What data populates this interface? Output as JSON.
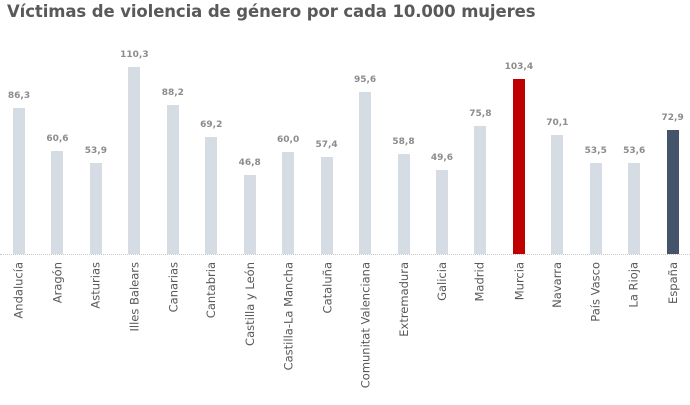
{
  "title": "Víctimas de violencia de género por cada 10.000 mujeres",
  "colors": {
    "default_bar": "#d5dce4",
    "highlight_bar": "#c00000",
    "national_bar": "#44546a",
    "value_label": "#8c8c8c",
    "category_label": "#595959",
    "title": "#595959"
  },
  "chart_data": {
    "type": "bar",
    "title": "Víctimas de violencia de género por cada 10.000 mujeres",
    "xlabel": "",
    "ylabel": "",
    "ylim": [
      0,
      110.3
    ],
    "grid": false,
    "legend": null,
    "categories": [
      "Andalucía",
      "Aragón",
      "Asturias",
      "Illes Balears",
      "Canarias",
      "Cantabria",
      "Castilla y León",
      "Castilla-La Mancha",
      "Cataluña",
      "Comunitat Valenciana",
      "Extremadura",
      "Galicia",
      "Madrid",
      "Murcia",
      "Navarra",
      "País Vasco",
      "La Rioja",
      "España"
    ],
    "values": [
      86.3,
      60.6,
      53.9,
      110.3,
      88.2,
      69.2,
      46.8,
      60.0,
      57.4,
      95.6,
      58.8,
      49.6,
      75.8,
      103.4,
      70.1,
      53.5,
      53.6,
      72.9
    ],
    "value_labels": [
      "86,3",
      "60,6",
      "53,9",
      "110,3",
      "88,2",
      "69,2",
      "46,8",
      "60,0",
      "57,4",
      "95,6",
      "58,8",
      "49,6",
      "75,8",
      "103,4",
      "70,1",
      "53,5",
      "53,6",
      "72,9"
    ],
    "bar_colors": [
      "#d5dce4",
      "#d5dce4",
      "#d5dce4",
      "#d5dce4",
      "#d5dce4",
      "#d5dce4",
      "#d5dce4",
      "#d5dce4",
      "#d5dce4",
      "#d5dce4",
      "#d5dce4",
      "#d5dce4",
      "#d5dce4",
      "#c00000",
      "#d5dce4",
      "#d5dce4",
      "#d5dce4",
      "#44546a"
    ],
    "annotations": [
      "Murcia highlighted in red",
      "España (national average) in dark blue"
    ]
  }
}
